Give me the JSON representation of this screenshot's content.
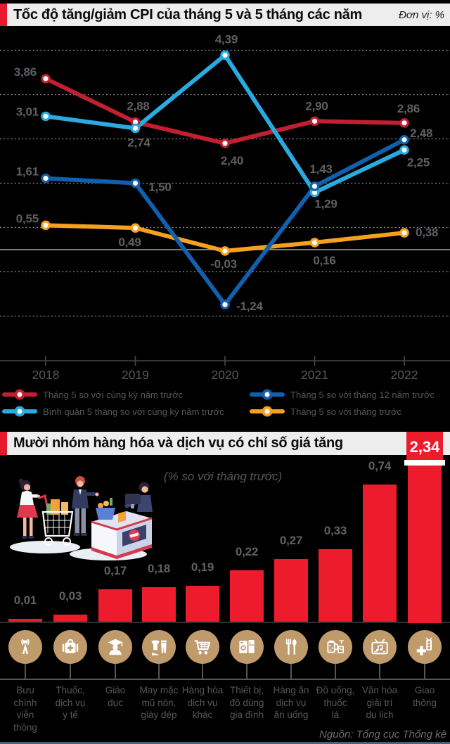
{
  "section1": {
    "title": "Tốc độ tăng/giảm CPI của tháng 5 và 5 tháng các năm",
    "unit_note": "Đơn vị: %"
  },
  "section2": {
    "title": "Mười nhóm hàng hóa và dịch vụ có chỉ số giá tăng",
    "subtitle": "(% so với tháng trước)",
    "source": "Nguồn: Tổng cục Thống kê"
  },
  "colors": {
    "background": "#000000",
    "titlebar_bg": "#ededed",
    "accent_red": "#e8192d",
    "line_red": "#c21f30",
    "light_blue": "#29abe2",
    "dark_blue": "#1160ae",
    "orange": "#f5a01f",
    "bar_red": "#ec1c2d",
    "icon_tan": "#bf9b6c",
    "label_gray": "#5f6064",
    "bottom_strip": "#4b5e86"
  },
  "chart_data": [
    {
      "type": "line",
      "title": "Tốc độ tăng/giảm CPI của tháng 5 và 5 tháng các năm",
      "unit": "%",
      "x": [
        "2018",
        "2019",
        "2020",
        "2021",
        "2022"
      ],
      "ylim": [
        -1.5,
        4.5
      ],
      "grid": "dashed-horizontal-with-solid-zero-line",
      "legend_position": "bottom",
      "series": [
        {
          "name": "Tháng 5 so với cùng kỳ năm trước",
          "color": "#c21f30",
          "values": [
            3.86,
            2.88,
            2.4,
            2.9,
            2.86
          ],
          "labels": [
            "3,86",
            "2,88",
            "2,40",
            "2,90",
            "2,86"
          ]
        },
        {
          "name": "Bình quân 5 tháng so với cùng kỳ năm trước",
          "color": "#29abe2",
          "values": [
            3.01,
            2.74,
            4.39,
            1.29,
            2.25
          ],
          "labels": [
            "3,01",
            "2,74",
            "4,39",
            "1,29",
            "2,25"
          ]
        },
        {
          "name": "Tháng 5 so với tháng 12 năm trước",
          "color": "#1160ae",
          "values": [
            1.61,
            1.5,
            -1.24,
            1.43,
            2.48
          ],
          "labels": [
            "1,61",
            "1,50",
            "-1,24",
            "1,43",
            "2,48"
          ]
        },
        {
          "name": "Tháng 5 so với tháng trước",
          "color": "#f5a01f",
          "values": [
            0.55,
            0.49,
            -0.03,
            0.16,
            0.38
          ],
          "labels": [
            "0,55",
            "0,49",
            "-0,03",
            "0,16",
            "0,38"
          ]
        }
      ],
      "legend_display_order": [
        0,
        2,
        1,
        3
      ]
    },
    {
      "type": "bar",
      "title": "Mười nhóm hàng hóa và dịch vụ có chỉ số giá tăng",
      "subtitle": "(% so với tháng trước)",
      "bar_color": "#ec1c2d",
      "categories": [
        "Bưu chính viễn thông",
        "Thuốc, dịch vụ y tế",
        "Giáo dục",
        "May mặc mũ nón, giày dép",
        "Hàng hóa dịch vụ khác",
        "Thiết bị, đồ dùng gia đình",
        "Hàng ăn dịch vụ ăn uống",
        "Đồ uống, thuốc lá",
        "Văn hóa giải trí du lịch",
        "Giao thông"
      ],
      "category_lines": [
        [
          "Bưu",
          "chính",
          "viễn",
          "thông"
        ],
        [
          "Thuốc,",
          "dịch vụ",
          "y tế"
        ],
        [
          "Giáo",
          "dục"
        ],
        [
          "May mặc",
          "mũ nón,",
          "giày dép"
        ],
        [
          "Hàng hóa",
          "dịch vụ",
          "khác"
        ],
        [
          "Thiết bị,",
          "đồ dùng",
          "gia đình"
        ],
        [
          "Hàng ăn",
          "dịch vụ",
          "ăn uống"
        ],
        [
          "Đồ uống,",
          "thuốc",
          "lá"
        ],
        [
          "Văn hóa",
          "giải trí",
          "du lịch"
        ],
        [
          "Giao",
          "thông"
        ]
      ],
      "values": [
        0.01,
        0.03,
        0.17,
        0.18,
        0.19,
        0.22,
        0.27,
        0.33,
        0.74,
        2.34
      ],
      "labels": [
        "0,01",
        "0,03",
        "0,17",
        "0,18",
        "0,19",
        "0,22",
        "0,27",
        "0,33",
        "0,74",
        "2,34"
      ],
      "icons": [
        "broadcast-antenna-icon",
        "medical-bag-icon",
        "graduate-icon",
        "clothing-icon",
        "shopping-cart-icon",
        "home-appliances-icon",
        "fork-spoon-icon",
        "beverage-tobacco-icon",
        "tv-entertainment-icon",
        "traffic-light-icon"
      ],
      "source": "Nguồn: Tổng cục Thống kê"
    }
  ]
}
